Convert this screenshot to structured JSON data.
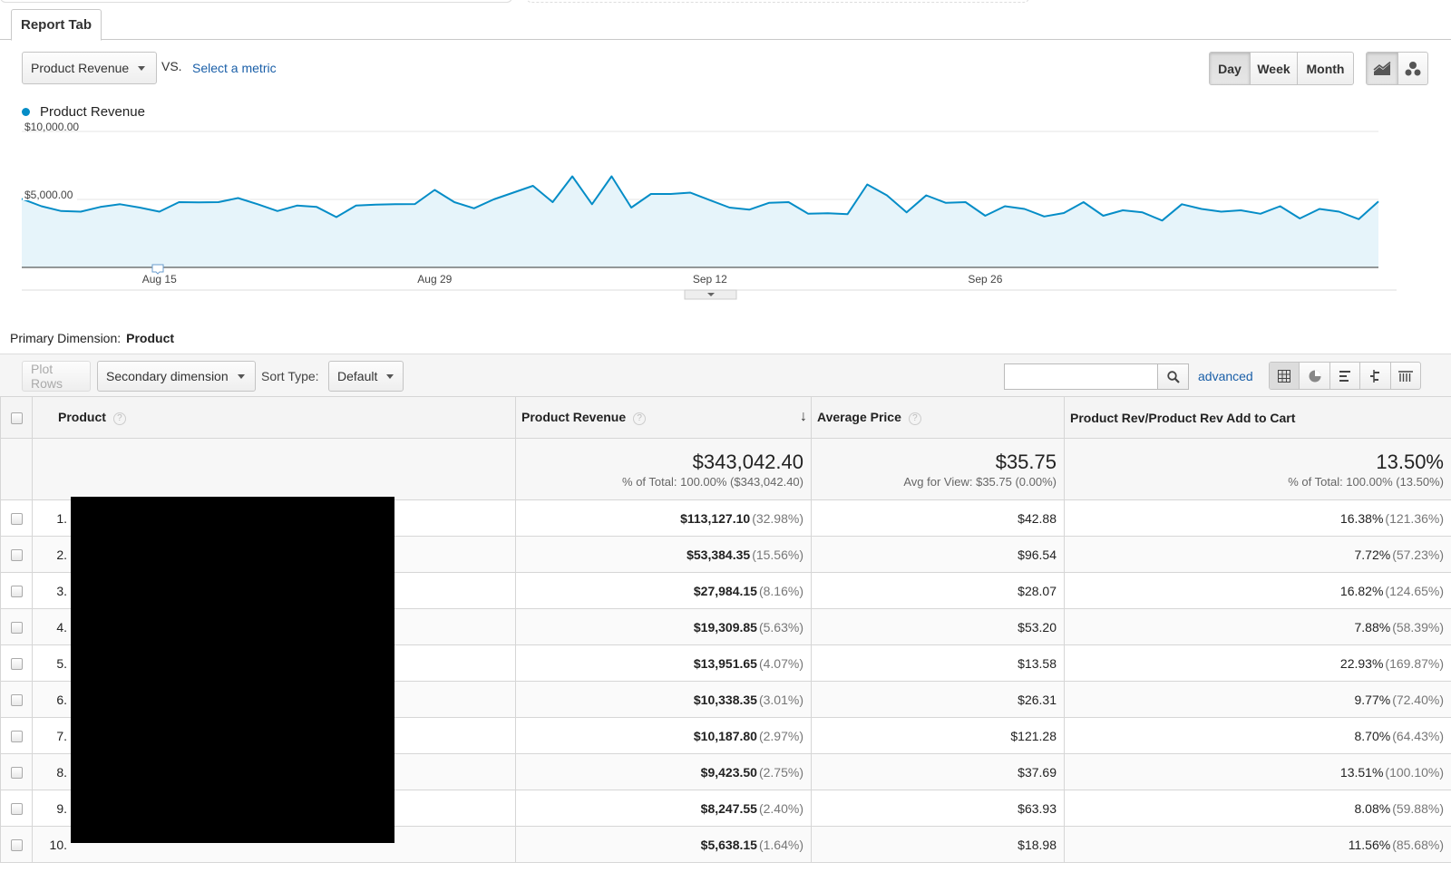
{
  "tab": {
    "label": "Report Tab"
  },
  "controls": {
    "metric": "Product Revenue",
    "vs": "VS.",
    "select_metric": "Select a metric",
    "periods": [
      "Day",
      "Week",
      "Month"
    ],
    "active_period": "Day"
  },
  "chart_data": {
    "type": "area",
    "series": [
      {
        "name": "Product Revenue",
        "values": [
          5050,
          4500,
          4150,
          4100,
          4450,
          4650,
          4400,
          4100,
          4800,
          4780,
          4800,
          5100,
          4650,
          4150,
          4550,
          4450,
          3700,
          4550,
          4620,
          4650,
          4660,
          5700,
          4800,
          4350,
          5000,
          5500,
          6000,
          4800,
          6700,
          4650,
          6700,
          4400,
          5400,
          5400,
          5500,
          4950,
          4400,
          4250,
          4750,
          4800,
          3950,
          3980,
          3920,
          6100,
          5300,
          4050,
          5300,
          4750,
          4800,
          3800,
          4500,
          4300,
          3750,
          4000,
          4800,
          3800,
          4200,
          4050,
          3450,
          4650,
          4300,
          4100,
          4200,
          3950,
          4500,
          3600,
          4300,
          4100,
          3550,
          4850
        ],
        "color": "#058dc7"
      }
    ],
    "y_ticks": [
      "$10,000.00",
      "$5,000.00"
    ],
    "ylim": [
      0,
      10000
    ],
    "x_ticks": [
      "Aug 15",
      "Aug 29",
      "Sep 12",
      "Sep 26"
    ]
  },
  "primary_dimension": {
    "label": "Primary Dimension:",
    "value": "Product"
  },
  "toolbar": {
    "plot_rows": "Plot Rows",
    "secondary": "Secondary dimension",
    "sort_label": "Sort Type:",
    "sort_value": "Default",
    "search_placeholder": "",
    "advanced": "advanced"
  },
  "table": {
    "headers": {
      "product": "Product",
      "revenue": "Product Revenue",
      "avg_price": "Average Price",
      "rev_ratio": "Product Rev/Product Rev Add to Cart"
    },
    "totals": {
      "revenue": "$343,042.40",
      "revenue_sub": "% of Total: 100.00% ($343,042.40)",
      "avg_price": "$35.75",
      "avg_price_sub": "Avg for View: $35.75 (0.00%)",
      "rev_ratio": "13.50%",
      "rev_ratio_sub": "% of Total: 100.00% (13.50%)"
    },
    "rows": [
      {
        "idx": "1.",
        "revenue": "$113,127.10",
        "revenue_pct": "(32.98%)",
        "avg_price": "$42.88",
        "ratio": "16.38%",
        "ratio_pct": "(121.36%)"
      },
      {
        "idx": "2.",
        "revenue": "$53,384.35",
        "revenue_pct": "(15.56%)",
        "avg_price": "$96.54",
        "ratio": "7.72%",
        "ratio_pct": "(57.23%)"
      },
      {
        "idx": "3.",
        "revenue": "$27,984.15",
        "revenue_pct": "(8.16%)",
        "avg_price": "$28.07",
        "ratio": "16.82%",
        "ratio_pct": "(124.65%)"
      },
      {
        "idx": "4.",
        "revenue": "$19,309.85",
        "revenue_pct": "(5.63%)",
        "avg_price": "$53.20",
        "ratio": "7.88%",
        "ratio_pct": "(58.39%)"
      },
      {
        "idx": "5.",
        "revenue": "$13,951.65",
        "revenue_pct": "(4.07%)",
        "avg_price": "$13.58",
        "ratio": "22.93%",
        "ratio_pct": "(169.87%)"
      },
      {
        "idx": "6.",
        "revenue": "$10,338.35",
        "revenue_pct": "(3.01%)",
        "avg_price": "$26.31",
        "ratio": "9.77%",
        "ratio_pct": "(72.40%)"
      },
      {
        "idx": "7.",
        "revenue": "$10,187.80",
        "revenue_pct": "(2.97%)",
        "avg_price": "$121.28",
        "ratio": "8.70%",
        "ratio_pct": "(64.43%)"
      },
      {
        "idx": "8.",
        "revenue": "$9,423.50",
        "revenue_pct": "(2.75%)",
        "avg_price": "$37.69",
        "ratio": "13.51%",
        "ratio_pct": "(100.10%)"
      },
      {
        "idx": "9.",
        "revenue": "$8,247.55",
        "revenue_pct": "(2.40%)",
        "avg_price": "$63.93",
        "ratio": "8.08%",
        "ratio_pct": "(59.88%)"
      },
      {
        "idx": "10.",
        "revenue": "$5,638.15",
        "revenue_pct": "(1.64%)",
        "avg_price": "$18.98",
        "ratio": "11.56%",
        "ratio_pct": "(85.68%)"
      }
    ]
  },
  "icons": {
    "line_chart": "line-chart-icon",
    "motion_chart": "motion-chart-icon",
    "search": "search-icon",
    "table_view": "table-view-icon",
    "pie_view": "pie-view-icon",
    "performance_view": "performance-view-icon",
    "comparison_view": "comparison-view-icon",
    "pivot_view": "pivot-view-icon"
  }
}
